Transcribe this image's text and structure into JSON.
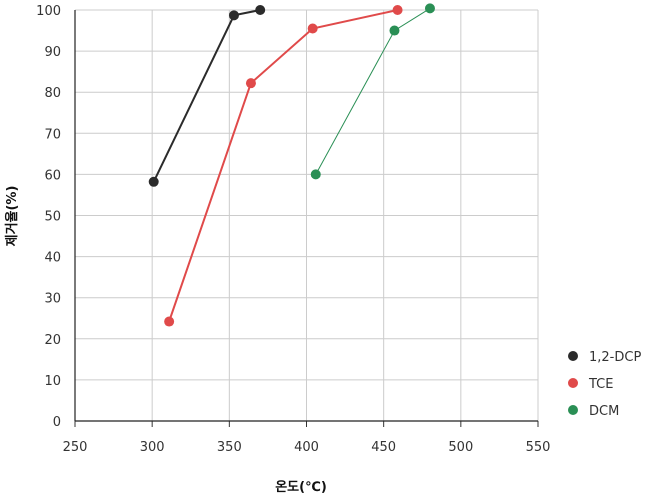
{
  "chart_data": {
    "type": "line",
    "xlabel": "온도(℃)",
    "ylabel": "제거율(%)",
    "xlim": [
      250,
      550
    ],
    "ylim": [
      0,
      100
    ],
    "xticks": [
      250,
      300,
      350,
      400,
      450,
      500,
      550
    ],
    "yticks": [
      0,
      10,
      20,
      30,
      40,
      50,
      60,
      70,
      80,
      90,
      100
    ],
    "grid": true,
    "legend_position": "bottom-right",
    "series": [
      {
        "name": "1,2-DCP",
        "color": "#2b2b2b",
        "x": [
          301,
          353,
          370
        ],
        "y": [
          58.2,
          98.7,
          100
        ]
      },
      {
        "name": "TCE",
        "color": "#e04a4a",
        "x": [
          311,
          364,
          404,
          459
        ],
        "y": [
          24.2,
          82.2,
          95.5,
          100
        ]
      },
      {
        "name": "DCM",
        "color": "#2a8f55",
        "x": [
          406,
          457,
          480
        ],
        "y": [
          60,
          95,
          100.4
        ]
      }
    ]
  }
}
